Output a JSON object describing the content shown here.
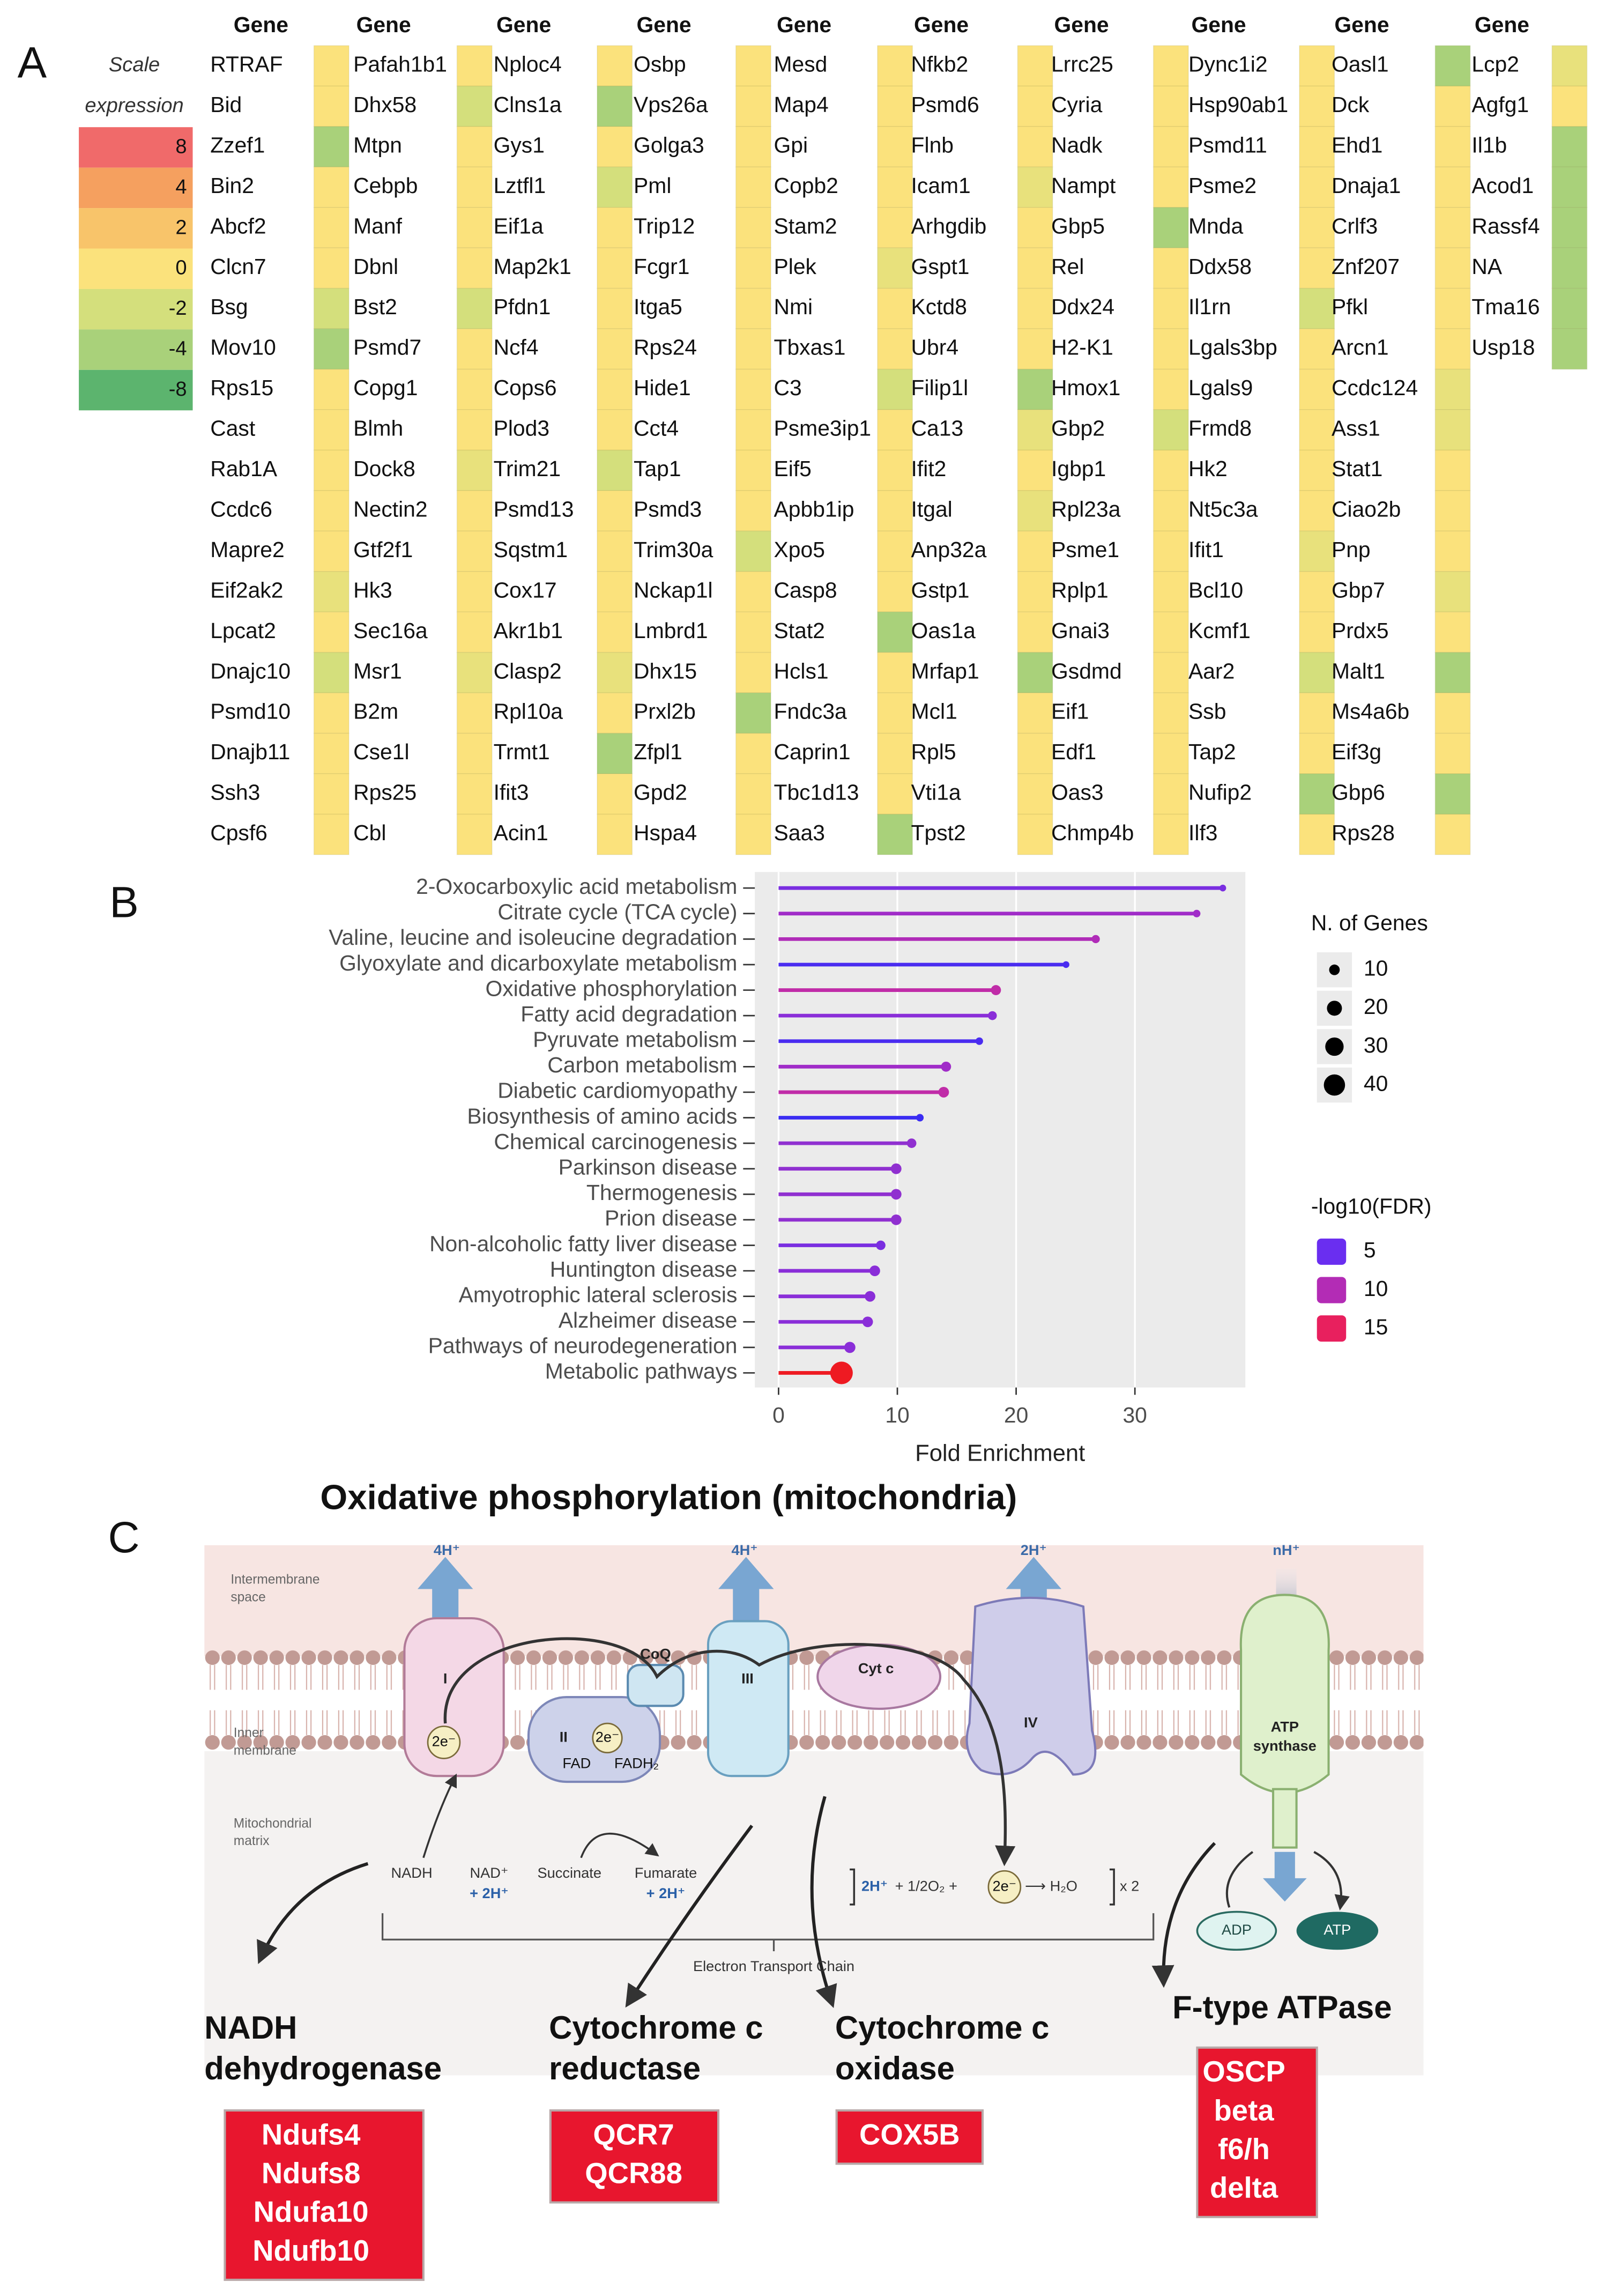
{
  "panel_a": {
    "letter": "A",
    "scale": {
      "title": [
        "Scale",
        "expression"
      ],
      "values": [
        8,
        4,
        2,
        0,
        -2,
        -4,
        -8
      ],
      "colors": [
        "#f06a6a",
        "#f5a05f",
        "#f8c46a",
        "#fbe27c",
        "#d4df7c",
        "#a9d17a",
        "#5cb46e"
      ]
    },
    "columns": [
      {
        "header": "Gene",
        "genes": [
          "RTRAF",
          "Bid",
          "Zzef1",
          "Bin2",
          "Abcf2",
          "Clcn7",
          "Bsg",
          "Mov10",
          "Rps15",
          "Cast",
          "Rab1A",
          "Ccdc6",
          "Mapre2",
          "Eif2ak2",
          "Lpcat2",
          "Dnajc10",
          "Psmd10",
          "Dnajb11",
          "Ssh3",
          "Cpsf6"
        ],
        "values": [
          0,
          0,
          -4,
          0,
          0,
          0,
          -2,
          -4,
          0,
          0,
          0,
          0,
          0,
          -1,
          0,
          -2,
          0,
          0,
          0,
          0
        ]
      },
      {
        "header": "Gene",
        "genes": [
          "Pafah1b1",
          "Dhx58",
          "Mtpn",
          "Cebpb",
          "Manf",
          "Dbnl",
          "Bst2",
          "Psmd7",
          "Copg1",
          "Blmh",
          "Dock8",
          "Nectin2",
          "Gtf2f1",
          "Hk3",
          "Sec16a",
          "Msr1",
          "B2m",
          "Cse1l",
          "Rps25",
          "Cbl"
        ],
        "values": [
          0,
          -2,
          0,
          0,
          0,
          0,
          -2,
          0,
          0,
          0,
          -1,
          0,
          0,
          0,
          0,
          -1,
          0,
          0,
          0,
          0
        ]
      },
      {
        "header": "Gene",
        "genes": [
          "Nploc4",
          "Clns1a",
          "Gys1",
          "Lztfl1",
          "Eif1a",
          "Map2k1",
          "Pfdn1",
          "Ncf4",
          "Cops6",
          "Plod3",
          "Trim21",
          "Psmd13",
          "Sqstm1",
          "Cox17",
          "Akr1b1",
          "Clasp2",
          "Rpl10a",
          "Trmt1",
          "Ifit3",
          "Acin1"
        ],
        "values": [
          0,
          -4,
          0,
          -2,
          0,
          0,
          0,
          0,
          0,
          0,
          -2,
          0,
          0,
          0,
          0,
          -1,
          0,
          -4,
          0,
          0
        ]
      },
      {
        "header": "Gene",
        "genes": [
          "Osbp",
          "Vps26a",
          "Golga3",
          "Pml",
          "Trip12",
          "Fcgr1",
          "Itga5",
          "Rps24",
          "Hide1",
          "Cct4",
          "Tap1",
          "Psmd3",
          "Trim30a",
          "Nckap1l",
          "Lmbrd1",
          "Dhx15",
          "Prxl2b",
          "Zfpl1",
          "Gpd2",
          "Hspa4"
        ],
        "values": [
          0,
          0,
          0,
          0,
          0,
          0,
          0,
          0,
          0,
          0,
          0,
          0,
          -2,
          0,
          0,
          0,
          -4,
          0,
          0,
          0
        ]
      },
      {
        "header": "Gene",
        "genes": [
          "Mesd",
          "Map4",
          "Gpi",
          "Copb2",
          "Stam2",
          "Plek",
          "Nmi",
          "Tbxas1",
          "C3",
          "Psme3ip1",
          "Eif5",
          "Apbb1ip",
          "Xpo5",
          "Casp8",
          "Stat2",
          "Hcls1",
          "Fndc3a",
          "Caprin1",
          "Tbc1d13",
          "Saa3"
        ],
        "values": [
          0,
          0,
          0,
          0,
          0,
          -1,
          0,
          0,
          -2,
          0,
          0,
          0,
          0,
          0,
          -4,
          0,
          0,
          0,
          0,
          -4
        ]
      },
      {
        "header": "Gene",
        "genes": [
          "Nfkb2",
          "Psmd6",
          "Flnb",
          "Icam1",
          "Arhgdib",
          "Gspt1",
          "Kctd8",
          "Ubr4",
          "Filip1l",
          "Ca13",
          "Ifit2",
          "Itgal",
          "Anp32a",
          "Gstp1",
          "Oas1a",
          "Mrfap1",
          "Mcl1",
          "Rpl5",
          "Vti1a",
          "Tpst2"
        ],
        "values": [
          0,
          0,
          0,
          -1,
          0,
          0,
          0,
          0,
          -4,
          -1,
          0,
          -1,
          0,
          0,
          0,
          -4,
          0,
          0,
          0,
          0
        ]
      },
      {
        "header": "Gene",
        "genes": [
          "Lrrc25",
          "Cyria",
          "Nadk",
          "Nampt",
          "Gbp5",
          "Rel",
          "Ddx24",
          "H2-K1",
          "Hmox1",
          "Gbp2",
          "Igbp1",
          "Rpl23a",
          "Psme1",
          "Rplp1",
          "Gnai3",
          "Gsdmd",
          "Eif1",
          "Edf1",
          "Oas3",
          "Chmp4b"
        ],
        "values": [
          0,
          0,
          0,
          0,
          -4,
          0,
          0,
          0,
          0,
          -2,
          0,
          0,
          0,
          0,
          0,
          0,
          0,
          0,
          0,
          0
        ]
      },
      {
        "header": "Gene",
        "genes": [
          "Dync1i2",
          "Hsp90ab1",
          "Psmd11",
          "Psme2",
          "Mnda",
          "Ddx58",
          "Il1rn",
          "Lgals3bp",
          "Lgals9",
          "Frmd8",
          "Hk2",
          "Nt5c3a",
          "Ifit1",
          "Bcl10",
          "Kcmf1",
          "Aar2",
          "Ssb",
          "Tap2",
          "Nufip2",
          "Ilf3"
        ],
        "values": [
          0,
          0,
          0,
          0,
          0,
          0,
          -2,
          0,
          0,
          0,
          0,
          0,
          -1,
          0,
          0,
          -2,
          0,
          0,
          -4,
          0
        ]
      },
      {
        "header": "Gene",
        "genes": [
          "Oasl1",
          "Dck",
          "Ehd1",
          "Dnaja1",
          "Crlf3",
          "Znf207",
          "Pfkl",
          "Arcn1",
          "Ccdc124",
          "Ass1",
          "Stat1",
          "Ciao2b",
          "Pnp",
          "Gbp7",
          "Prdx5",
          "Malt1",
          "Ms4a6b",
          "Eif3g",
          "Gbp6",
          "Rps28"
        ],
        "values": [
          -4,
          0,
          0,
          0,
          0,
          0,
          0,
          0,
          -1,
          -1,
          0,
          0,
          0,
          -1,
          0,
          -4,
          0,
          0,
          -4,
          0
        ]
      },
      {
        "header": "Gene",
        "genes": [
          "Lcp2",
          "Agfg1",
          "Il1b",
          "Acod1",
          "Rassf4",
          "NA",
          "Tma16",
          "Usp18"
        ],
        "values": [
          -1,
          0,
          -4,
          -4,
          -4,
          -4,
          -4,
          -4
        ]
      }
    ]
  },
  "chart_data": {
    "type": "lollipop",
    "panel_label": "B",
    "categories": [
      "2-Oxocarboxylic acid metabolism",
      "Citrate cycle (TCA cycle)",
      "Valine, leucine and isoleucine degradation",
      "Glyoxylate and dicarboxylate metabolism",
      "Oxidative phosphorylation",
      "Fatty acid degradation",
      "Pyruvate metabolism",
      "Carbon metabolism",
      "Diabetic cardiomyopathy",
      "Biosynthesis of amino acids",
      "Chemical carcinogenesis",
      "Parkinson disease",
      "Thermogenesis",
      "Prion disease",
      "Non-alcoholic fatty liver disease",
      "Huntington disease",
      "Amyotrophic lateral sclerosis",
      "Alzheimer disease",
      "Pathways of neurodegeneration",
      "Metabolic pathways"
    ],
    "values": [
      37.4,
      35.2,
      26.7,
      24.2,
      18.3,
      18.0,
      16.9,
      14.1,
      13.9,
      11.9,
      11.2,
      9.9,
      9.9,
      9.9,
      8.6,
      8.1,
      7.7,
      7.5,
      6.0,
      5.3
    ],
    "sizes": [
      4,
      5,
      6,
      4,
      9,
      7,
      5,
      9,
      10,
      5,
      8,
      10,
      10,
      10,
      8,
      10,
      10,
      10,
      11,
      45
    ],
    "colors": [
      "#7a2ee0",
      "#a02cc8",
      "#b02cb8",
      "#4a2cf0",
      "#c02ca8",
      "#8a2ed8",
      "#4a2cf0",
      "#a02cc8",
      "#c02ca8",
      "#3a2cf2",
      "#9030d0",
      "#9030d0",
      "#9030d0",
      "#9030d0",
      "#7a2ee0",
      "#8a2ed8",
      "#8a2ed8",
      "#8a2ed8",
      "#8a2ed8",
      "#ee1a22"
    ],
    "xlabel": "Fold Enrichment",
    "xlim": [
      -2,
      39.3
    ],
    "xticks": [
      0,
      10,
      20,
      30
    ],
    "grid": true,
    "size_legend": {
      "title": "N. of Genes",
      "values": [
        10,
        20,
        30,
        40
      ]
    },
    "color_legend": {
      "title": "-log10(FDR)",
      "values": [
        5,
        10,
        15
      ],
      "colors": [
        "#6a2ef0",
        "#b32cb5",
        "#e8205e"
      ]
    }
  },
  "panel_c": {
    "letter": "C",
    "title": "Oxidative phosphorylation (mitochondria)",
    "regions": [
      [
        "Intermembrane",
        "space"
      ],
      [
        "Inner",
        "membrane"
      ],
      [
        "Mitochondrial",
        "matrix"
      ]
    ],
    "protons": [
      "4H⁺",
      "4H⁺",
      "2H⁺",
      "nH⁺"
    ],
    "complexes": [
      "I",
      "II",
      "CoQ",
      "III",
      "Cyt c",
      "IV",
      [
        "ATP",
        "synthase"
      ]
    ],
    "electrons": [
      "2e⁻",
      "2e⁻"
    ],
    "cofactors": [
      "FAD",
      "FADH₂"
    ],
    "substrates": [
      "NADH",
      "NAD⁺",
      "+ 2H⁺",
      "Succinate",
      "Fumarate",
      "+ 2H⁺"
    ],
    "reaction": [
      "2H⁺",
      "+ 1/2O₂ +",
      "2e⁻",
      "⟶ H₂O",
      "x 2"
    ],
    "energy": [
      "ADP",
      "ATP"
    ],
    "chain": "Electron Transport Chain",
    "enzymes": [
      {
        "name": [
          "NADH",
          "dehydrogenase"
        ],
        "genes": [
          "Ndufs4",
          "Ndufs8",
          "Ndufa10",
          "Ndufb10"
        ]
      },
      {
        "name": [
          "Cytochrome c",
          "reductase"
        ],
        "genes": [
          "QCR7",
          "QCR88"
        ]
      },
      {
        "name": [
          "Cytochrome c",
          "oxidase"
        ],
        "genes": [
          "COX5B"
        ]
      },
      {
        "name": [
          "F-type ATPase"
        ],
        "genes": [
          "OSCP",
          "beta",
          "f6/h",
          "delta"
        ]
      }
    ]
  }
}
